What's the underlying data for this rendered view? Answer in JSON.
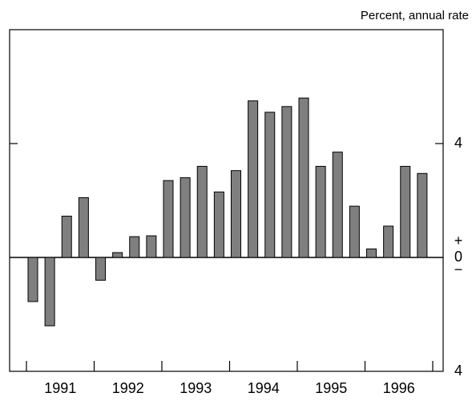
{
  "chart_data": {
    "type": "bar",
    "unit_label": "Percent, annual rate",
    "categories": [
      null,
      null,
      null,
      null,
      null,
      null,
      null,
      null,
      null,
      null,
      null,
      null,
      null,
      null,
      null,
      null,
      null,
      null,
      null,
      null,
      null,
      null,
      null,
      null
    ],
    "year_labels": [
      "1991",
      "1992",
      "1993",
      "1994",
      "1995",
      "1996"
    ],
    "values": [
      -1.55,
      -2.4,
      1.45,
      2.1,
      -0.8,
      0.17,
      0.73,
      0.76,
      2.7,
      2.8,
      3.2,
      2.3,
      3.05,
      5.5,
      5.1,
      5.3,
      5.6,
      3.2,
      3.7,
      1.8,
      0.3,
      1.1,
      3.2,
      2.95
    ],
    "color": "#7f7f7f",
    "ylim": [
      -4,
      8
    ],
    "yticks": [
      {
        "value": -4,
        "label": "4"
      },
      0,
      4
    ],
    "zero_signs": [
      "+",
      "−"
    ]
  }
}
